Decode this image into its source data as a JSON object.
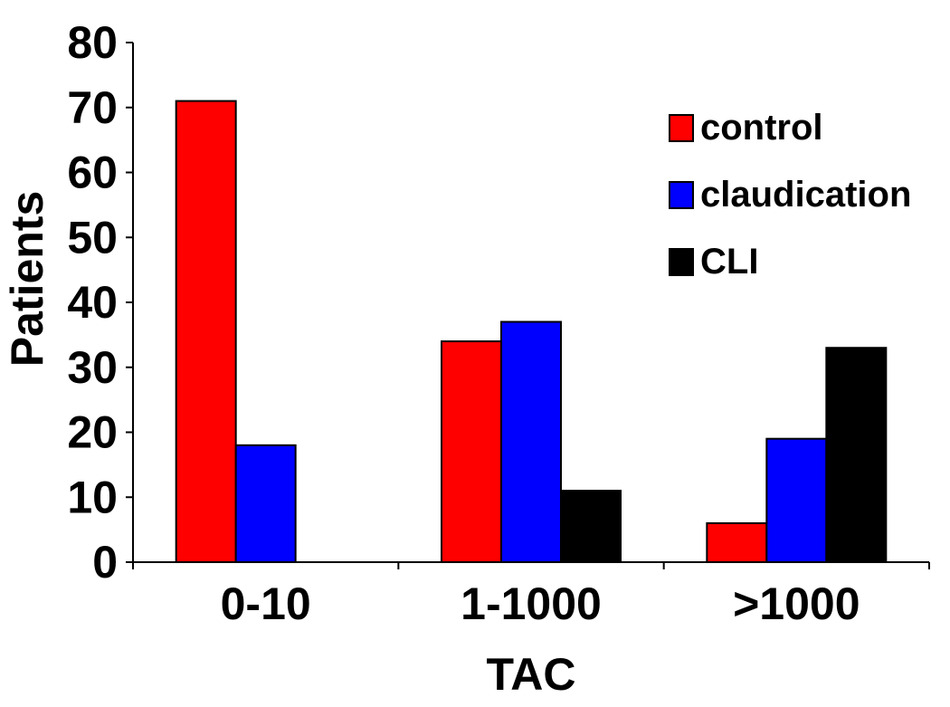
{
  "chart_data": {
    "type": "bar",
    "title": "",
    "xlabel": "TAC",
    "ylabel": "Patients",
    "ylim": [
      0,
      80
    ],
    "yticks": [
      0,
      10,
      20,
      30,
      40,
      50,
      60,
      70,
      80
    ],
    "grid": false,
    "legend_position": "top-right",
    "categories": [
      "0-10",
      "1-1000",
      ">1000"
    ],
    "series": [
      {
        "name": "control",
        "color": "#ff0000",
        "values": [
          71,
          34,
          6
        ]
      },
      {
        "name": "claudication",
        "color": "#0000ff",
        "values": [
          18,
          37,
          19
        ]
      },
      {
        "name": "CLI",
        "color": "#000000",
        "values": [
          0,
          11,
          33
        ]
      }
    ]
  }
}
